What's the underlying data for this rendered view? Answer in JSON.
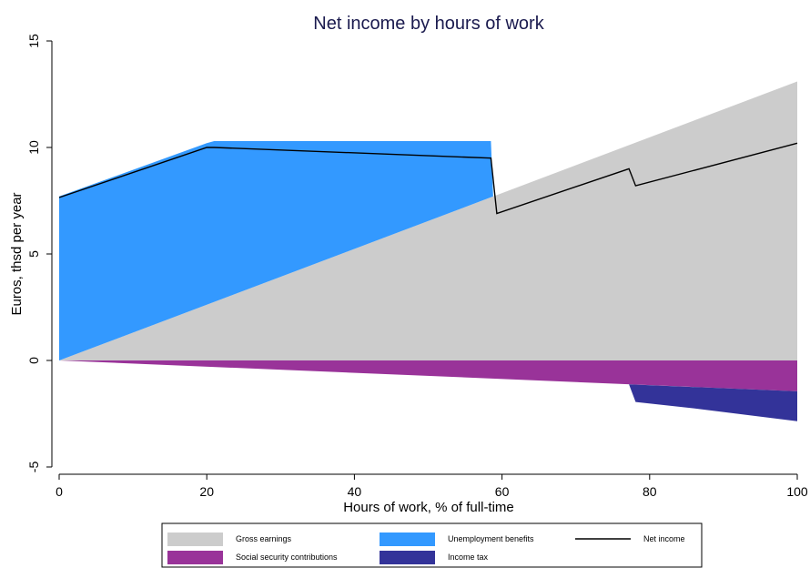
{
  "chart_data": {
    "type": "area",
    "title": "Net income by hours of work",
    "xlabel": "Hours of work, % of full-time",
    "ylabel": "Euros, thsd per year",
    "xlim": [
      0,
      100
    ],
    "ylim": [
      -5,
      15
    ],
    "x_ticks": [
      "0",
      "20",
      "40",
      "60",
      "80",
      "100"
    ],
    "y_ticks": [
      "-5",
      "0",
      "5",
      "10",
      "15"
    ],
    "grid": false,
    "legend_position": "bottom",
    "series": [
      {
        "name": "Gross earnings",
        "kind": "area",
        "color": "#cccccc",
        "points": [
          [
            0,
            0
          ],
          [
            100,
            13.1
          ]
        ]
      },
      {
        "name": "Unemployment benefits",
        "kind": "stacked-area",
        "color": "#3399ff",
        "top": [
          [
            0,
            7.7
          ],
          [
            20,
            10.2
          ],
          [
            21,
            10.3
          ],
          [
            58.5,
            10.3
          ],
          [
            58.8,
            7.7
          ]
        ],
        "bottom": [
          [
            58.8,
            7.7
          ],
          [
            0,
            0
          ]
        ]
      },
      {
        "name": "Net income",
        "kind": "line",
        "color": "#000000",
        "points": [
          [
            0,
            7.65
          ],
          [
            20,
            10.0
          ],
          [
            21,
            10.0
          ],
          [
            58.5,
            9.5
          ],
          [
            59.3,
            6.9
          ],
          [
            77.2,
            9.0
          ],
          [
            78.1,
            8.2
          ],
          [
            100,
            10.2
          ]
        ]
      },
      {
        "name": "Social security contributions",
        "kind": "area",
        "color": "#993399",
        "points": [
          [
            0,
            0
          ],
          [
            100,
            0
          ],
          [
            100,
            -1.45
          ],
          [
            0,
            0
          ]
        ]
      },
      {
        "name": "Income tax",
        "kind": "area",
        "color": "#333399",
        "points": [
          [
            77.2,
            -1.12
          ],
          [
            100,
            -1.45
          ],
          [
            100,
            -2.85
          ],
          [
            86,
            -2.25
          ],
          [
            78.1,
            -1.95
          ],
          [
            77.2,
            -1.12
          ]
        ]
      }
    ],
    "legend": [
      {
        "label": "Gross earnings",
        "color": "#cccccc",
        "kind": "box"
      },
      {
        "label": "Unemployment benefits",
        "color": "#3399ff",
        "kind": "box"
      },
      {
        "label": "Net income",
        "color": "#000000",
        "kind": "line"
      },
      {
        "label": "Social security contributions",
        "color": "#993399",
        "kind": "box"
      },
      {
        "label": "Income tax",
        "color": "#333399",
        "kind": "box"
      }
    ]
  }
}
